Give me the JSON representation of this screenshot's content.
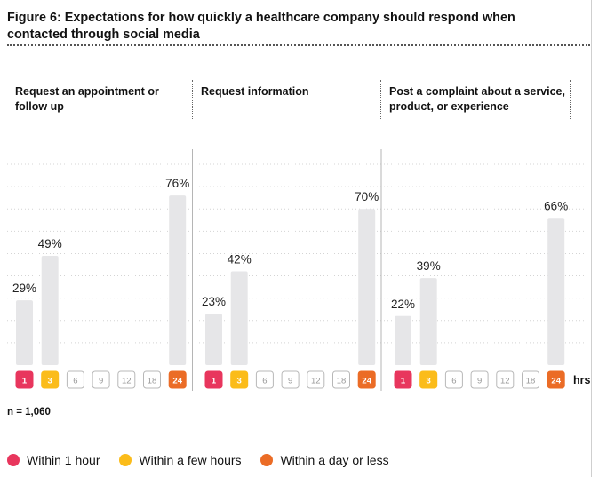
{
  "title": "Figure 6:  Expectations for how quickly a healthcare company should respond when contacted through social media",
  "sample_size": "n = 1,060",
  "x_unit": "hrs",
  "colors": {
    "within_1_hour": "#e8365d",
    "within_few_hours": "#fbbc1a",
    "within_day": "#eb6c26",
    "bar": "#e6e6e8",
    "neutral_badge": "#999999"
  },
  "legend": [
    {
      "label": "Within 1 hour",
      "color": "#e8365d"
    },
    {
      "label": "Within a few hours",
      "color": "#fbbc1a"
    },
    {
      "label": "Within a day or less",
      "color": "#eb6c26"
    }
  ],
  "chart_data": {
    "type": "bar",
    "categories": [
      "1",
      "3",
      "6",
      "9",
      "12",
      "18",
      "24"
    ],
    "highlighted_categories": {
      "1": "#e8365d",
      "3": "#fbbc1a",
      "24": "#eb6c26"
    },
    "ylim": [
      0,
      90
    ],
    "grid": true,
    "legend_position": "bottom",
    "panels": [
      {
        "label": "Request an appointment or follow up",
        "values": [
          29,
          49,
          null,
          null,
          null,
          null,
          76
        ],
        "data_labels": [
          "29%",
          "49%",
          "",
          "",
          "",
          "",
          "76%"
        ]
      },
      {
        "label": "Request information",
        "values": [
          23,
          42,
          null,
          null,
          null,
          null,
          70
        ],
        "data_labels": [
          "23%",
          "42%",
          "",
          "",
          "",
          "",
          "70%"
        ]
      },
      {
        "label": "Post a complaint about a service, product, or experience",
        "values": [
          22,
          39,
          null,
          null,
          null,
          null,
          66
        ],
        "data_labels": [
          "22%",
          "39%",
          "",
          "",
          "",
          "",
          "66%"
        ]
      }
    ]
  }
}
